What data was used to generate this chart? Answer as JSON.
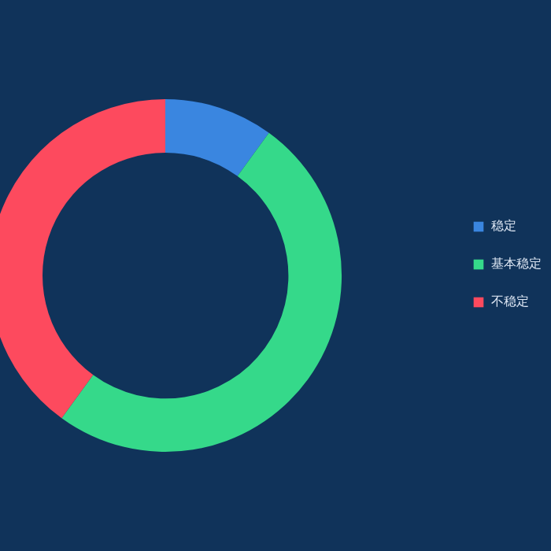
{
  "chart_data": {
    "type": "donut",
    "categories": [
      "稳定",
      "基本稳定",
      "不稳定"
    ],
    "values": [
      10,
      50,
      40
    ],
    "colors": [
      "#3a86e0",
      "#35d98a",
      "#fd4a5e"
    ],
    "legend": "right"
  }
}
